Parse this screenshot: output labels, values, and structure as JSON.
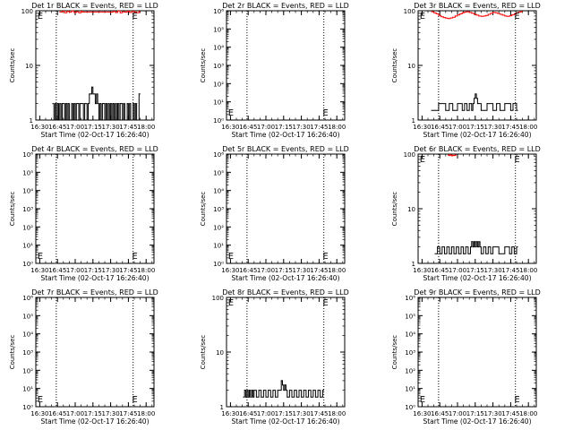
{
  "chart_data": [
    {
      "type": "line",
      "title": "Det 1r BLACK = Events, RED = LLD",
      "ylabel": "Counts/sec",
      "xlabel": "Start Time (02-Oct-17 16:26:40)",
      "y_scale": "log",
      "ylim": [
        1,
        100
      ],
      "y_ticks": [
        "1",
        "10",
        "100"
      ],
      "x_ticks": [
        "16:30",
        "16:45",
        "17:00",
        "17:15",
        "17:30",
        "17:45",
        "18:00"
      ],
      "xlim": [
        "16:26:40",
        "18:06:40"
      ],
      "dotted_vlines": [
        "16:44",
        "17:49"
      ],
      "marker": "E",
      "marker_at": [
        [
          "16:28",
          100
        ],
        [
          "17:48",
          100
        ]
      ],
      "series": [
        {
          "color": "#ff0000",
          "x": [
            "16:47",
            "16:49",
            "16:51",
            "16:53",
            "16:55",
            "16:57",
            "16:59",
            "17:01",
            "17:03",
            "17:05",
            "17:06",
            "17:30",
            "17:32",
            "17:34",
            "17:36",
            "17:38",
            "17:40",
            "17:42",
            "17:44",
            "17:46",
            "17:48",
            "17:50",
            "17:52",
            "17:54"
          ],
          "y": [
            95,
            98,
            92,
            97,
            94,
            99,
            93,
            96,
            92,
            98,
            95,
            94,
            97,
            93,
            99,
            92,
            96,
            94,
            98,
            93,
            97,
            95,
            92,
            96
          ]
        },
        {
          "color": "#000000",
          "x": [
            "16:41",
            "16:42",
            "16:43",
            "16:44",
            "16:45",
            "16:46",
            "16:47",
            "16:48",
            "16:49",
            "16:50",
            "16:51",
            "16:52",
            "16:53",
            "16:54",
            "16:55",
            "16:56",
            "16:57",
            "16:58",
            "16:59",
            "17:00",
            "17:01",
            "17:02",
            "17:03",
            "17:04",
            "17:05",
            "17:06",
            "17:07",
            "17:08",
            "17:09",
            "17:10",
            "17:11",
            "17:12",
            "17:13",
            "17:14",
            "17:15",
            "17:16",
            "17:17",
            "17:18",
            "17:19",
            "17:20",
            "17:21",
            "17:22",
            "17:23",
            "17:24",
            "17:25",
            "17:26",
            "17:27",
            "17:28",
            "17:29",
            "17:30",
            "17:31",
            "17:32",
            "17:33",
            "17:34",
            "17:35",
            "17:36",
            "17:37",
            "17:38",
            "17:39",
            "17:40",
            "17:41",
            "17:42",
            "17:43",
            "17:44",
            "17:45",
            "17:46",
            "17:47",
            "17:48",
            "17:49",
            "17:50",
            "17:51",
            "17:52",
            "17:53",
            "17:54"
          ],
          "y": [
            2,
            1,
            2,
            1,
            2,
            1,
            2,
            1,
            2,
            2,
            1,
            2,
            1,
            2,
            1,
            1,
            2,
            1,
            2,
            1,
            2,
            2,
            1,
            2,
            2,
            2,
            1,
            2,
            2,
            1,
            2,
            3,
            3,
            4,
            3,
            3,
            2,
            3,
            2,
            1,
            2,
            1,
            2,
            2,
            1,
            2,
            1,
            2,
            1,
            2,
            1,
            2,
            1,
            2,
            1,
            2,
            1,
            2,
            2,
            1,
            2,
            1,
            1,
            2,
            1,
            2,
            1,
            1,
            2,
            1,
            2,
            1,
            1,
            3
          ]
        }
      ]
    },
    {
      "type": "line",
      "title": "Det 2r BLACK = Events, RED = LLD",
      "ylabel": "Counts/sec",
      "xlabel": "Start Time (02-Oct-17 16:26:40)",
      "y_scale": "log",
      "ylim": [
        1,
        1000000
      ],
      "y_ticks": [
        "10⁰",
        "10¹",
        "10²",
        "10³",
        "10⁴",
        "10⁵",
        "10⁶"
      ],
      "x_ticks": [
        "16:30",
        "16:45",
        "17:00",
        "17:15",
        "17:30",
        "17:45",
        "18:00"
      ],
      "xlim": [
        "16:26:40",
        "18:06:40"
      ],
      "dotted_vlines": [
        "16:44",
        "17:49"
      ],
      "marker": "E",
      "marker_at": [
        [
          "16:28",
          1.6
        ],
        [
          "17:48",
          1.6
        ]
      ],
      "series": []
    },
    {
      "type": "line",
      "title": "Det 3r BLACK = Events, RED = LLD",
      "ylabel": "Counts/sec",
      "xlabel": "Start Time (02-Oct-17 16:26:40)",
      "y_scale": "log",
      "ylim": [
        1,
        100
      ],
      "y_ticks": [
        "1",
        "10",
        "100"
      ],
      "x_ticks": [
        "16:30",
        "16:45",
        "17:00",
        "17:15",
        "17:30",
        "17:45",
        "18:00"
      ],
      "xlim": [
        "16:26:40",
        "18:06:40"
      ],
      "dotted_vlines": [
        "16:44",
        "17:49"
      ],
      "marker": "E",
      "marker_at": [
        [
          "16:28",
          100
        ],
        [
          "17:48",
          100
        ]
      ],
      "series": [
        {
          "color": "#ff0000",
          "x": [
            "16:38",
            "16:40",
            "16:42",
            "16:44",
            "16:46",
            "16:48",
            "16:50",
            "16:52",
            "16:54",
            "16:56",
            "16:58",
            "17:00",
            "17:02",
            "17:04",
            "17:06",
            "17:08",
            "17:10",
            "17:12",
            "17:14",
            "17:16",
            "17:18",
            "17:20",
            "17:22",
            "17:24",
            "17:26",
            "17:28",
            "17:30",
            "17:32",
            "17:34",
            "17:36",
            "17:38",
            "17:40",
            "17:42",
            "17:44",
            "17:46",
            "17:48",
            "17:50",
            "17:52",
            "17:54"
          ],
          "y": [
            96,
            92,
            88,
            82,
            78,
            75,
            73,
            72,
            74,
            76,
            80,
            84,
            88,
            92,
            95,
            96,
            93,
            90,
            86,
            83,
            80,
            79,
            80,
            82,
            86,
            90,
            93,
            92,
            89,
            86,
            83,
            80,
            79,
            81,
            84,
            88,
            92,
            95,
            97
          ]
        },
        {
          "color": "#000000",
          "x": [
            "16:38",
            "16:44",
            "16:50",
            "16:53",
            "16:56",
            "17:00",
            "17:04",
            "17:06",
            "17:08",
            "17:10",
            "17:12",
            "17:13",
            "17:14",
            "17:15",
            "17:16",
            "17:17",
            "17:18",
            "17:20",
            "17:25",
            "17:30",
            "17:33",
            "17:36",
            "17:40",
            "17:45",
            "17:47",
            "17:50"
          ],
          "y": [
            1.5,
            2,
            1.5,
            2,
            1.5,
            2,
            1.5,
            2,
            1.5,
            2,
            1.5,
            2,
            2.5,
            3,
            2.5,
            2,
            2,
            1.5,
            2,
            1.5,
            2,
            1.5,
            2,
            1.5,
            2,
            1.5
          ]
        }
      ]
    },
    {
      "type": "line",
      "title": "Det 4r BLACK = Events, RED = LLD",
      "ylabel": "Counts/sec",
      "xlabel": "Start Time (02-Oct-17 16:26:40)",
      "y_scale": "log",
      "ylim": [
        1,
        1000000
      ],
      "y_ticks": [
        "10⁰",
        "10¹",
        "10²",
        "10³",
        "10⁴",
        "10⁵",
        "10⁶"
      ],
      "x_ticks": [
        "16:30",
        "16:45",
        "17:00",
        "17:15",
        "17:30",
        "17:45",
        "18:00"
      ],
      "xlim": [
        "16:26:40",
        "18:06:40"
      ],
      "dotted_vlines": [
        "16:44",
        "17:49"
      ],
      "marker": "E",
      "marker_at": [
        [
          "16:28",
          1.6
        ],
        [
          "17:48",
          1.6
        ]
      ],
      "series": []
    },
    {
      "type": "line",
      "title": "Det 5r BLACK = Events, RED = LLD",
      "ylabel": "Counts/sec",
      "xlabel": "Start Time (02-Oct-17 16:26:40)",
      "y_scale": "log",
      "ylim": [
        1,
        1000000
      ],
      "y_ticks": [
        "10⁰",
        "10¹",
        "10²",
        "10³",
        "10⁴",
        "10⁵",
        "10⁶"
      ],
      "x_ticks": [
        "16:30",
        "16:45",
        "17:00",
        "17:15",
        "17:30",
        "17:45",
        "18:00"
      ],
      "xlim": [
        "16:26:40",
        "18:06:40"
      ],
      "dotted_vlines": [
        "16:44",
        "17:49"
      ],
      "marker": "E",
      "marker_at": [
        [
          "16:28",
          1.6
        ],
        [
          "17:48",
          1.6
        ]
      ],
      "series": []
    },
    {
      "type": "line",
      "title": "Det 6r BLACK = Events, RED = LLD",
      "ylabel": "Counts/sec",
      "xlabel": "Start Time (02-Oct-17 16:26:40)",
      "y_scale": "log",
      "ylim": [
        1,
        100
      ],
      "y_ticks": [
        "1",
        "10",
        "100"
      ],
      "x_ticks": [
        "16:30",
        "16:45",
        "17:00",
        "17:15",
        "17:30",
        "17:45",
        "18:00"
      ],
      "xlim": [
        "16:26:40",
        "18:06:40"
      ],
      "dotted_vlines": [
        "16:44",
        "17:49"
      ],
      "marker": "E",
      "marker_at": [
        [
          "16:28",
          100
        ],
        [
          "17:48",
          100
        ]
      ],
      "series": [
        {
          "color": "#ff0000",
          "x": [
            "16:52",
            "16:53",
            "16:54",
            "16:55",
            "16:56",
            "16:57",
            "16:58"
          ],
          "y": [
            96,
            94,
            97,
            93,
            95,
            94,
            96
          ]
        },
        {
          "color": "#000000",
          "x": [
            "16:41",
            "16:43",
            "16:45",
            "16:47",
            "16:49",
            "16:51",
            "16:53",
            "16:55",
            "16:57",
            "16:59",
            "17:01",
            "17:03",
            "17:05",
            "17:07",
            "17:09",
            "17:11",
            "17:12",
            "17:13",
            "17:14",
            "17:15",
            "17:16",
            "17:17",
            "17:18",
            "17:19",
            "17:20",
            "17:22",
            "17:24",
            "17:26",
            "17:28",
            "17:30",
            "17:35",
            "17:40",
            "17:44",
            "17:46",
            "17:48",
            "17:50"
          ],
          "y": [
            1.5,
            2,
            1.5,
            2,
            1.5,
            2,
            1.5,
            2,
            1.5,
            2,
            1.5,
            2,
            1.5,
            2,
            1.5,
            2,
            2.5,
            2,
            2.5,
            2,
            2.5,
            2,
            2.5,
            2,
            1.5,
            2,
            1.5,
            2,
            1.5,
            2,
            1.5,
            2,
            1.5,
            2,
            1.5,
            2
          ]
        }
      ]
    },
    {
      "type": "line",
      "title": "Det 7r BLACK = Events, RED = LLD",
      "ylabel": "Counts/sec",
      "xlabel": "Start Time (02-Oct-17 16:26:40)",
      "y_scale": "log",
      "ylim": [
        1,
        1000000
      ],
      "y_ticks": [
        "10⁰",
        "10¹",
        "10²",
        "10³",
        "10⁴",
        "10⁵",
        "10⁶"
      ],
      "x_ticks": [
        "16:30",
        "16:45",
        "17:00",
        "17:15",
        "17:30",
        "17:45",
        "18:00"
      ],
      "xlim": [
        "16:26:40",
        "18:06:40"
      ],
      "dotted_vlines": [
        "16:44",
        "17:49"
      ],
      "marker": "E",
      "marker_at": [
        [
          "16:28",
          1.6
        ],
        [
          "17:48",
          1.6
        ]
      ],
      "series": []
    },
    {
      "type": "line",
      "title": "Det 8r BLACK = Events, RED = LLD",
      "ylabel": "Counts/sec",
      "xlabel": "Start Time (02-Oct-17 16:26:40)",
      "y_scale": "log",
      "ylim": [
        1,
        100
      ],
      "y_ticks": [
        "1",
        "10",
        "100"
      ],
      "x_ticks": [
        "16:30",
        "16:45",
        "17:00",
        "17:15",
        "17:30",
        "17:45",
        "18:00"
      ],
      "xlim": [
        "16:26:40",
        "18:06:40"
      ],
      "dotted_vlines": [
        "16:44",
        "17:49"
      ],
      "marker": "E",
      "marker_at": [
        [
          "16:28",
          100
        ],
        [
          "17:48",
          100
        ]
      ],
      "series": [
        {
          "color": "#000000",
          "x": [
            "16:41",
            "16:42",
            "16:43",
            "16:44",
            "16:45",
            "16:46",
            "16:47",
            "16:48",
            "16:49",
            "16:50",
            "16:52",
            "16:54",
            "16:56",
            "16:58",
            "17:00",
            "17:02",
            "17:04",
            "17:06",
            "17:08",
            "17:10",
            "17:12",
            "17:13",
            "17:14",
            "17:15",
            "17:16",
            "17:17",
            "17:18",
            "17:20",
            "17:22",
            "17:24",
            "17:26",
            "17:28",
            "17:30",
            "17:32",
            "17:34",
            "17:36",
            "17:38",
            "17:40",
            "17:42",
            "17:44",
            "17:46",
            "17:48"
          ],
          "y": [
            1.5,
            2,
            1.5,
            2,
            1.5,
            2,
            1.5,
            2,
            1.5,
            2,
            1.5,
            2,
            1.5,
            2,
            1.5,
            2,
            1.5,
            2,
            1.5,
            2,
            2,
            3,
            2.5,
            2,
            2.5,
            2,
            1.5,
            2,
            1.5,
            2,
            1.5,
            2,
            1.5,
            2,
            1.5,
            2,
            1.5,
            2,
            1.5,
            2,
            1.5,
            2
          ]
        }
      ]
    },
    {
      "type": "line",
      "title": "Det 9r BLACK = Events, RED = LLD",
      "ylabel": "Counts/sec",
      "xlabel": "Start Time (02-Oct-17 16:26:40)",
      "y_scale": "log",
      "ylim": [
        1,
        1000000
      ],
      "y_ticks": [
        "10⁰",
        "10¹",
        "10²",
        "10³",
        "10⁴",
        "10⁵",
        "10⁶"
      ],
      "x_ticks": [
        "16:30",
        "16:45",
        "17:00",
        "17:15",
        "17:30",
        "17:45",
        "18:00"
      ],
      "xlim": [
        "16:26:40",
        "18:06:40"
      ],
      "dotted_vlines": [
        "16:44",
        "17:49"
      ],
      "marker": "E",
      "marker_at": [
        [
          "16:28",
          1.6
        ],
        [
          "17:48",
          1.6
        ]
      ],
      "series": []
    }
  ]
}
